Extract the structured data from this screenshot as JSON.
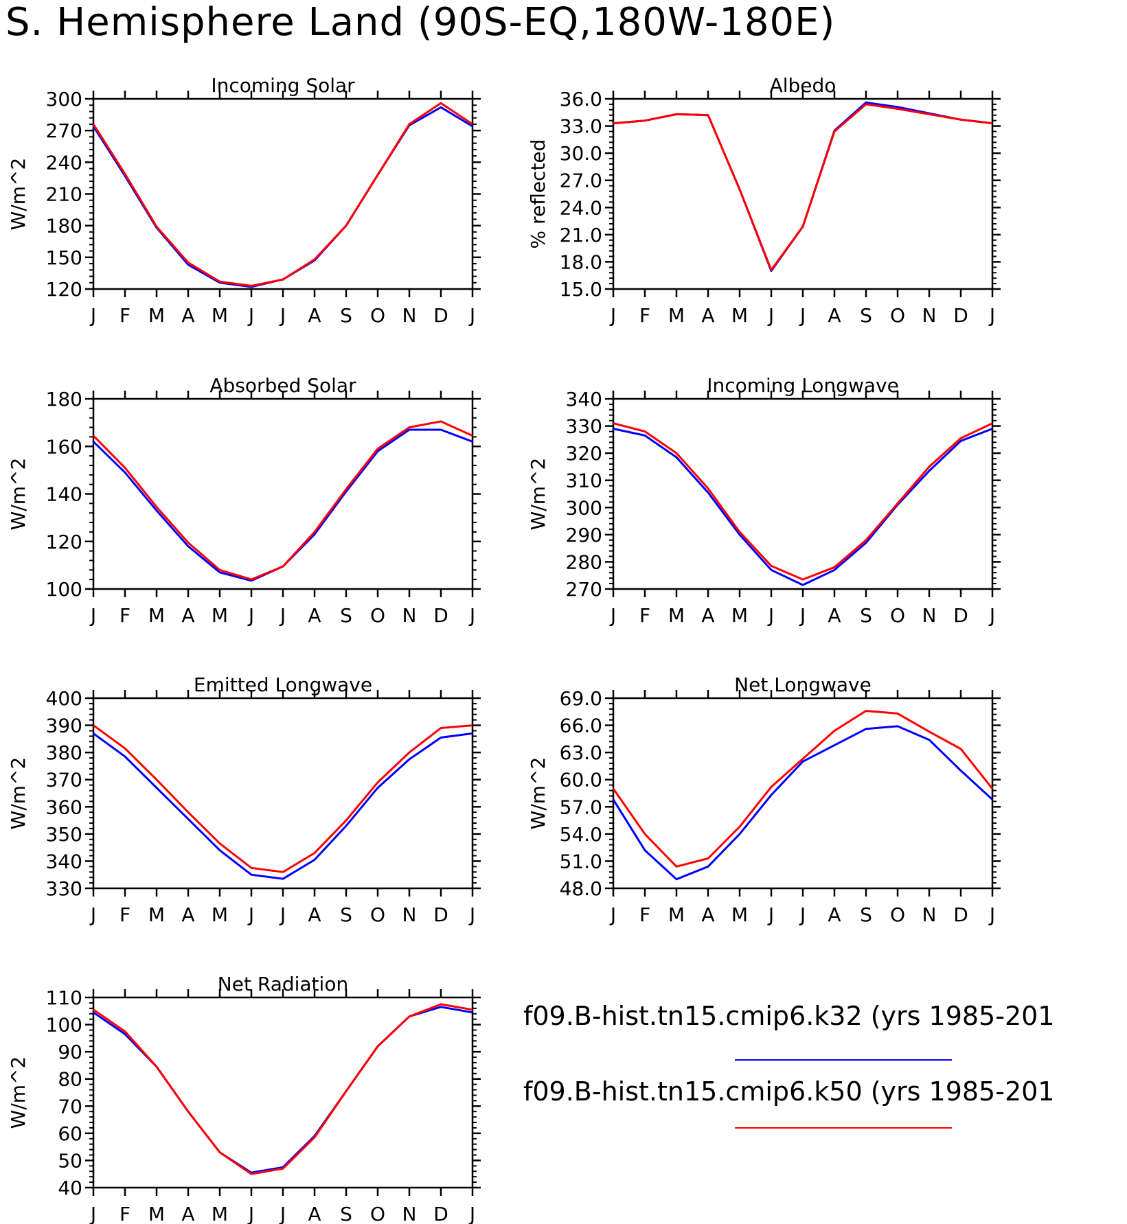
{
  "title": "S. Hemisphere Land (90S-EQ,180W-180E)",
  "months": [
    "J",
    "F",
    "M",
    "A",
    "M",
    "J",
    "J",
    "A",
    "S",
    "O",
    "N",
    "D",
    "J"
  ],
  "colors": {
    "k32": "#0000ff",
    "k50": "#ff0000"
  },
  "legend": [
    {
      "label": "f09.B-hist.tn15.cmip6.k32 (yrs 1985-201",
      "color": "#0000ff"
    },
    {
      "label": "f09.B-hist.tn15.cmip6.k50 (yrs 1985-201",
      "color": "#ff0000"
    }
  ],
  "chart_data": [
    {
      "type": "line",
      "title": "Incoming Solar",
      "ylabel": "W/m^2",
      "ylim": [
        120,
        300
      ],
      "yticks": [
        120,
        150,
        180,
        210,
        240,
        270,
        300
      ],
      "ytick_labels": [
        "120",
        "150",
        "180",
        "210",
        "240",
        "270",
        "300"
      ],
      "series": [
        {
          "color": "#0000ff",
          "values": [
            274,
            227,
            178,
            143,
            126,
            122,
            129,
            147,
            180,
            228,
            275,
            292,
            274
          ]
        },
        {
          "color": "#ff0000",
          "values": [
            276,
            229,
            179,
            145,
            127,
            123,
            129,
            148,
            180,
            228,
            276,
            296,
            276
          ]
        }
      ]
    },
    {
      "type": "line",
      "title": "Albedo",
      "ylabel": "% reflected",
      "ylim": [
        15,
        36
      ],
      "yticks": [
        15,
        18,
        21,
        24,
        27,
        30,
        33,
        36
      ],
      "ytick_labels": [
        "15.0",
        "18.0",
        "21.0",
        "24.0",
        "27.0",
        "30.0",
        "33.0",
        "36.0"
      ],
      "series": [
        {
          "color": "#0000ff",
          "values": [
            33.3,
            33.6,
            34.3,
            34.2,
            26.0,
            17.0,
            21.9,
            32.5,
            35.6,
            35.1,
            34.4,
            33.7,
            33.3
          ]
        },
        {
          "color": "#ff0000",
          "values": [
            33.3,
            33.6,
            34.3,
            34.2,
            26.0,
            17.1,
            21.9,
            32.4,
            35.4,
            34.9,
            34.3,
            33.7,
            33.3
          ]
        }
      ]
    },
    {
      "type": "line",
      "title": "Absorbed Solar",
      "ylabel": "W/m^2",
      "ylim": [
        100,
        180
      ],
      "yticks": [
        100,
        120,
        140,
        160,
        180
      ],
      "ytick_labels": [
        "100",
        "120",
        "140",
        "160",
        "180"
      ],
      "series": [
        {
          "color": "#0000ff",
          "values": [
            162,
            149,
            133,
            118,
            107,
            103.5,
            109.5,
            123,
            141,
            158,
            167,
            167,
            162
          ]
        },
        {
          "color": "#ff0000",
          "values": [
            164.5,
            151,
            134.5,
            119.5,
            108,
            104,
            109.5,
            124,
            142,
            159,
            168,
            170.5,
            164.5
          ]
        }
      ]
    },
    {
      "type": "line",
      "title": "Incoming Longwave",
      "ylabel": "W/m^2",
      "ylim": [
        270,
        340
      ],
      "yticks": [
        270,
        280,
        290,
        300,
        310,
        320,
        330,
        340
      ],
      "ytick_labels": [
        "270",
        "280",
        "290",
        "300",
        "310",
        "320",
        "330",
        "340"
      ],
      "series": [
        {
          "color": "#0000ff",
          "values": [
            329,
            326.5,
            318.5,
            305.5,
            290,
            277,
            271.5,
            277,
            287,
            301,
            313.5,
            324.5,
            329
          ]
        },
        {
          "color": "#ff0000",
          "values": [
            331,
            328,
            320,
            307,
            291,
            278.5,
            273.5,
            278,
            288,
            301.5,
            315,
            325.5,
            331
          ]
        }
      ]
    },
    {
      "type": "line",
      "title": "Emitted Longwave",
      "ylabel": "W/m^2",
      "ylim": [
        330,
        400
      ],
      "yticks": [
        330,
        340,
        350,
        360,
        370,
        380,
        390,
        400
      ],
      "ytick_labels": [
        "330",
        "340",
        "350",
        "360",
        "370",
        "380",
        "390",
        "400"
      ],
      "series": [
        {
          "color": "#0000ff",
          "values": [
            387,
            378.5,
            367,
            355.5,
            344,
            335,
            333.5,
            340.5,
            353,
            367,
            377.5,
            385.5,
            387
          ]
        },
        {
          "color": "#ff0000",
          "values": [
            390,
            381.5,
            370,
            358,
            346.5,
            337.5,
            336,
            343,
            355,
            369,
            380,
            389,
            390
          ]
        }
      ]
    },
    {
      "type": "line",
      "title": "Net Longwave",
      "ylabel": "W/m^2",
      "ylim": [
        48,
        69
      ],
      "yticks": [
        48,
        51,
        54,
        57,
        60,
        63,
        66,
        69
      ],
      "ytick_labels": [
        "48.0",
        "51.0",
        "54.0",
        "57.0",
        "60.0",
        "63.0",
        "66.0",
        "69.0"
      ],
      "series": [
        {
          "color": "#0000ff",
          "values": [
            57.8,
            52.2,
            49.0,
            50.4,
            54.0,
            58.3,
            62.0,
            63.8,
            65.6,
            65.9,
            64.4,
            61.0,
            57.8
          ]
        },
        {
          "color": "#ff0000",
          "values": [
            59.0,
            54.0,
            50.4,
            51.3,
            54.8,
            59.2,
            62.3,
            65.4,
            67.6,
            67.3,
            65.3,
            63.4,
            59.0
          ]
        }
      ]
    },
    {
      "type": "line",
      "title": "Net Radiation",
      "ylabel": "W/m^2",
      "ylim": [
        40,
        110
      ],
      "yticks": [
        40,
        50,
        60,
        70,
        80,
        90,
        100,
        110
      ],
      "ytick_labels": [
        "40",
        "50",
        "60",
        "70",
        "80",
        "90",
        "100",
        "110"
      ],
      "series": [
        {
          "color": "#0000ff",
          "values": [
            104.5,
            96.5,
            84.5,
            68,
            53,
            45.5,
            47.5,
            59,
            75.5,
            92,
            103,
            106.5,
            104.5
          ]
        },
        {
          "color": "#ff0000",
          "values": [
            105.5,
            97.5,
            84.5,
            68,
            53,
            45,
            47,
            58.5,
            75.5,
            92,
            103,
            107.5,
            105.5
          ]
        }
      ]
    }
  ]
}
